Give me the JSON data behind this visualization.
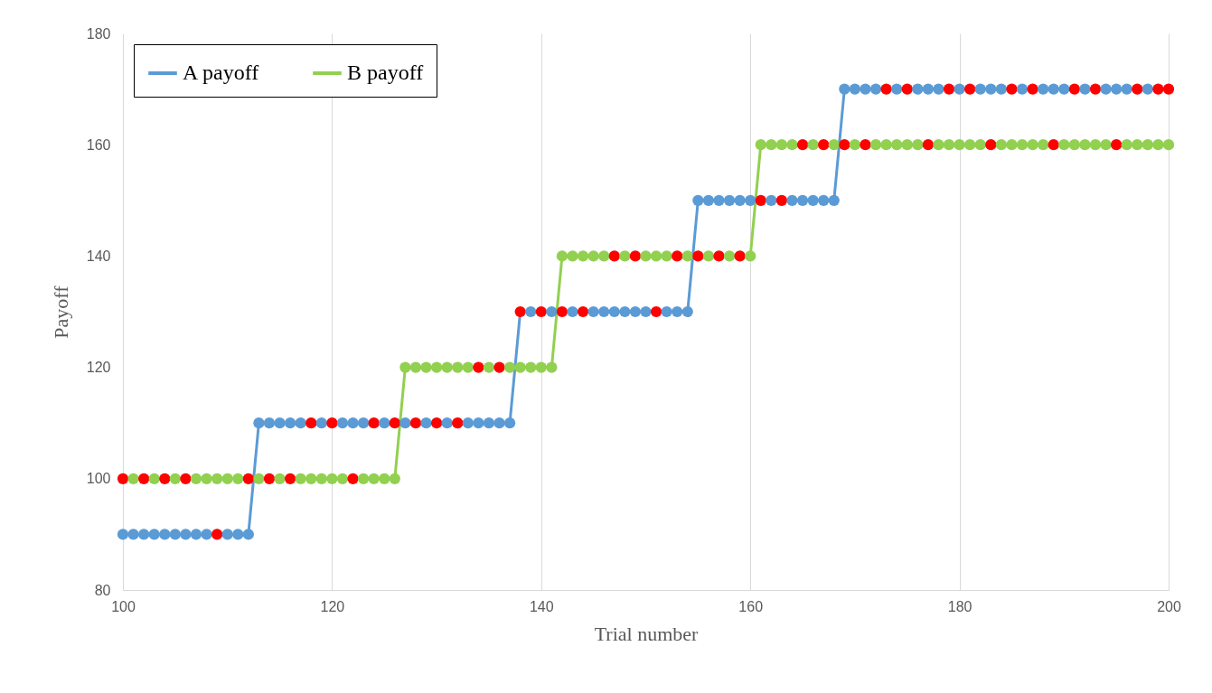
{
  "chart_data": {
    "type": "line",
    "xlabel": "Trial number",
    "ylabel": "Payoff",
    "x": [
      100,
      101,
      102,
      103,
      104,
      105,
      106,
      107,
      108,
      109,
      110,
      111,
      112,
      113,
      114,
      115,
      116,
      117,
      118,
      119,
      120,
      121,
      122,
      123,
      124,
      125,
      126,
      127,
      128,
      129,
      130,
      131,
      132,
      133,
      134,
      135,
      136,
      137,
      138,
      139,
      140,
      141,
      142,
      143,
      144,
      145,
      146,
      147,
      148,
      149,
      150,
      151,
      152,
      153,
      154,
      155,
      156,
      157,
      158,
      159,
      160,
      161,
      162,
      163,
      164,
      165,
      166,
      167,
      168,
      169,
      170,
      171,
      172,
      173,
      174,
      175,
      176,
      177,
      178,
      179,
      180,
      181,
      182,
      183,
      184,
      185,
      186,
      187,
      188,
      189,
      190,
      191,
      192,
      193,
      194,
      195,
      196,
      197,
      198,
      199,
      200
    ],
    "series": [
      {
        "name": "A payoff",
        "color": "#5b9bd5",
        "values": [
          90,
          90,
          90,
          90,
          90,
          90,
          90,
          90,
          90,
          90,
          90,
          90,
          90,
          110,
          110,
          110,
          110,
          110,
          110,
          110,
          110,
          110,
          110,
          110,
          110,
          110,
          110,
          110,
          110,
          110,
          110,
          110,
          110,
          110,
          110,
          110,
          110,
          110,
          130,
          130,
          130,
          130,
          130,
          130,
          130,
          130,
          130,
          130,
          130,
          130,
          130,
          130,
          130,
          130,
          130,
          150,
          150,
          150,
          150,
          150,
          150,
          150,
          150,
          150,
          150,
          150,
          150,
          150,
          150,
          170,
          170,
          170,
          170,
          170,
          170,
          170,
          170,
          170,
          170,
          170,
          170,
          170,
          170,
          170,
          170,
          170,
          170,
          170,
          170,
          170,
          170,
          170,
          170,
          170,
          170,
          170,
          170,
          170,
          170,
          170,
          170
        ],
        "colors": [
          "#5b9bd5",
          "#5b9bd5",
          "#5b9bd5",
          "#5b9bd5",
          "#5b9bd5",
          "#5b9bd5",
          "#5b9bd5",
          "#5b9bd5",
          "#5b9bd5",
          "#ff0000",
          "#5b9bd5",
          "#5b9bd5",
          "#5b9bd5",
          "#5b9bd5",
          "#5b9bd5",
          "#5b9bd5",
          "#5b9bd5",
          "#5b9bd5",
          "#ff0000",
          "#5b9bd5",
          "#ff0000",
          "#5b9bd5",
          "#5b9bd5",
          "#5b9bd5",
          "#ff0000",
          "#5b9bd5",
          "#ff0000",
          "#5b9bd5",
          "#ff0000",
          "#5b9bd5",
          "#ff0000",
          "#5b9bd5",
          "#ff0000",
          "#5b9bd5",
          "#5b9bd5",
          "#5b9bd5",
          "#5b9bd5",
          "#5b9bd5",
          "#ff0000",
          "#5b9bd5",
          "#ff0000",
          "#5b9bd5",
          "#ff0000",
          "#5b9bd5",
          "#ff0000",
          "#5b9bd5",
          "#5b9bd5",
          "#5b9bd5",
          "#5b9bd5",
          "#5b9bd5",
          "#5b9bd5",
          "#ff0000",
          "#5b9bd5",
          "#5b9bd5",
          "#5b9bd5",
          "#5b9bd5",
          "#5b9bd5",
          "#5b9bd5",
          "#5b9bd5",
          "#5b9bd5",
          "#5b9bd5",
          "#ff0000",
          "#5b9bd5",
          "#ff0000",
          "#5b9bd5",
          "#5b9bd5",
          "#5b9bd5",
          "#5b9bd5",
          "#5b9bd5",
          "#5b9bd5",
          "#5b9bd5",
          "#5b9bd5",
          "#5b9bd5",
          "#ff0000",
          "#5b9bd5",
          "#ff0000",
          "#5b9bd5",
          "#5b9bd5",
          "#5b9bd5",
          "#ff0000",
          "#5b9bd5",
          "#ff0000",
          "#5b9bd5",
          "#5b9bd5",
          "#5b9bd5",
          "#ff0000",
          "#5b9bd5",
          "#ff0000",
          "#5b9bd5",
          "#5b9bd5",
          "#5b9bd5",
          "#ff0000",
          "#5b9bd5",
          "#ff0000",
          "#5b9bd5",
          "#5b9bd5",
          "#5b9bd5",
          "#ff0000",
          "#5b9bd5",
          "#ff0000",
          "#ff0000"
        ]
      },
      {
        "name": "B payoff",
        "color": "#92d050",
        "values": [
          100,
          100,
          100,
          100,
          100,
          100,
          100,
          100,
          100,
          100,
          100,
          100,
          100,
          100,
          100,
          100,
          100,
          100,
          100,
          100,
          100,
          100,
          100,
          100,
          100,
          100,
          100,
          120,
          120,
          120,
          120,
          120,
          120,
          120,
          120,
          120,
          120,
          120,
          120,
          120,
          120,
          120,
          140,
          140,
          140,
          140,
          140,
          140,
          140,
          140,
          140,
          140,
          140,
          140,
          140,
          140,
          140,
          140,
          140,
          140,
          140,
          160,
          160,
          160,
          160,
          160,
          160,
          160,
          160,
          160,
          160,
          160,
          160,
          160,
          160,
          160,
          160,
          160,
          160,
          160,
          160,
          160,
          160,
          160,
          160,
          160,
          160,
          160,
          160,
          160,
          160,
          160,
          160,
          160,
          160,
          160,
          160,
          160,
          160,
          160,
          160
        ],
        "colors": [
          "#ff0000",
          "#92d050",
          "#ff0000",
          "#92d050",
          "#ff0000",
          "#92d050",
          "#ff0000",
          "#92d050",
          "#92d050",
          "#92d050",
          "#92d050",
          "#92d050",
          "#ff0000",
          "#92d050",
          "#ff0000",
          "#92d050",
          "#ff0000",
          "#92d050",
          "#92d050",
          "#92d050",
          "#92d050",
          "#92d050",
          "#ff0000",
          "#92d050",
          "#92d050",
          "#92d050",
          "#92d050",
          "#92d050",
          "#92d050",
          "#92d050",
          "#92d050",
          "#92d050",
          "#92d050",
          "#92d050",
          "#ff0000",
          "#92d050",
          "#ff0000",
          "#92d050",
          "#92d050",
          "#92d050",
          "#92d050",
          "#92d050",
          "#92d050",
          "#92d050",
          "#92d050",
          "#92d050",
          "#92d050",
          "#ff0000",
          "#92d050",
          "#ff0000",
          "#92d050",
          "#92d050",
          "#92d050",
          "#ff0000",
          "#92d050",
          "#ff0000",
          "#92d050",
          "#ff0000",
          "#92d050",
          "#ff0000",
          "#92d050",
          "#92d050",
          "#92d050",
          "#92d050",
          "#92d050",
          "#ff0000",
          "#92d050",
          "#ff0000",
          "#92d050",
          "#ff0000",
          "#92d050",
          "#ff0000",
          "#92d050",
          "#92d050",
          "#92d050",
          "#92d050",
          "#92d050",
          "#ff0000",
          "#92d050",
          "#92d050",
          "#92d050",
          "#92d050",
          "#92d050",
          "#ff0000",
          "#92d050",
          "#92d050",
          "#92d050",
          "#92d050",
          "#92d050",
          "#ff0000",
          "#92d050",
          "#92d050",
          "#92d050",
          "#92d050",
          "#92d050",
          "#ff0000",
          "#92d050",
          "#92d050",
          "#92d050",
          "#92d050",
          "#92d050"
        ]
      }
    ],
    "xlim": [
      100,
      200
    ],
    "xticks": [
      100,
      120,
      140,
      160,
      180,
      200
    ],
    "ylim": [
      80,
      180
    ],
    "yticks": [
      80,
      100,
      120,
      140,
      160,
      180
    ],
    "grid": "x",
    "legend": "top left",
    "marker": "circle",
    "line_style": "solid"
  }
}
